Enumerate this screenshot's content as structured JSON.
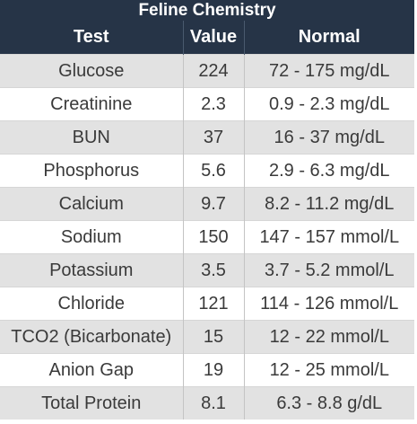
{
  "table": {
    "title": "Feline Chemistry",
    "headers": [
      "Test",
      "Value",
      "Normal"
    ],
    "rows": [
      [
        "Glucose",
        "224",
        "72 - 175 mg/dL"
      ],
      [
        "Creatinine",
        "2.3",
        "0.9 - 2.3 mg/dL"
      ],
      [
        "BUN",
        "37",
        "16 - 37 mg/dL"
      ],
      [
        "Phosphorus",
        "5.6",
        "2.9 - 6.3 mg/dL"
      ],
      [
        "Calcium",
        "9.7",
        "8.2 - 11.2 mg/dL"
      ],
      [
        "Sodium",
        "150",
        "147 - 157 mmol/L"
      ],
      [
        "Potassium",
        "3.5",
        "3.7 - 5.2 mmol/L"
      ],
      [
        "Chloride",
        "121",
        "114 - 126 mmol/L"
      ],
      [
        "TCO2 (Bicarbonate)",
        "15",
        "12 - 22 mmol/L"
      ],
      [
        "Anion Gap",
        "19",
        "12 - 25 mmol/L"
      ],
      [
        "Total Protein",
        "8.1",
        "6.3 - 8.8 g/dL"
      ]
    ],
    "colors": {
      "header_bg": "#263447",
      "header_text": "#ffffff",
      "row_alt_bg": "#e2e2e2"
    }
  }
}
